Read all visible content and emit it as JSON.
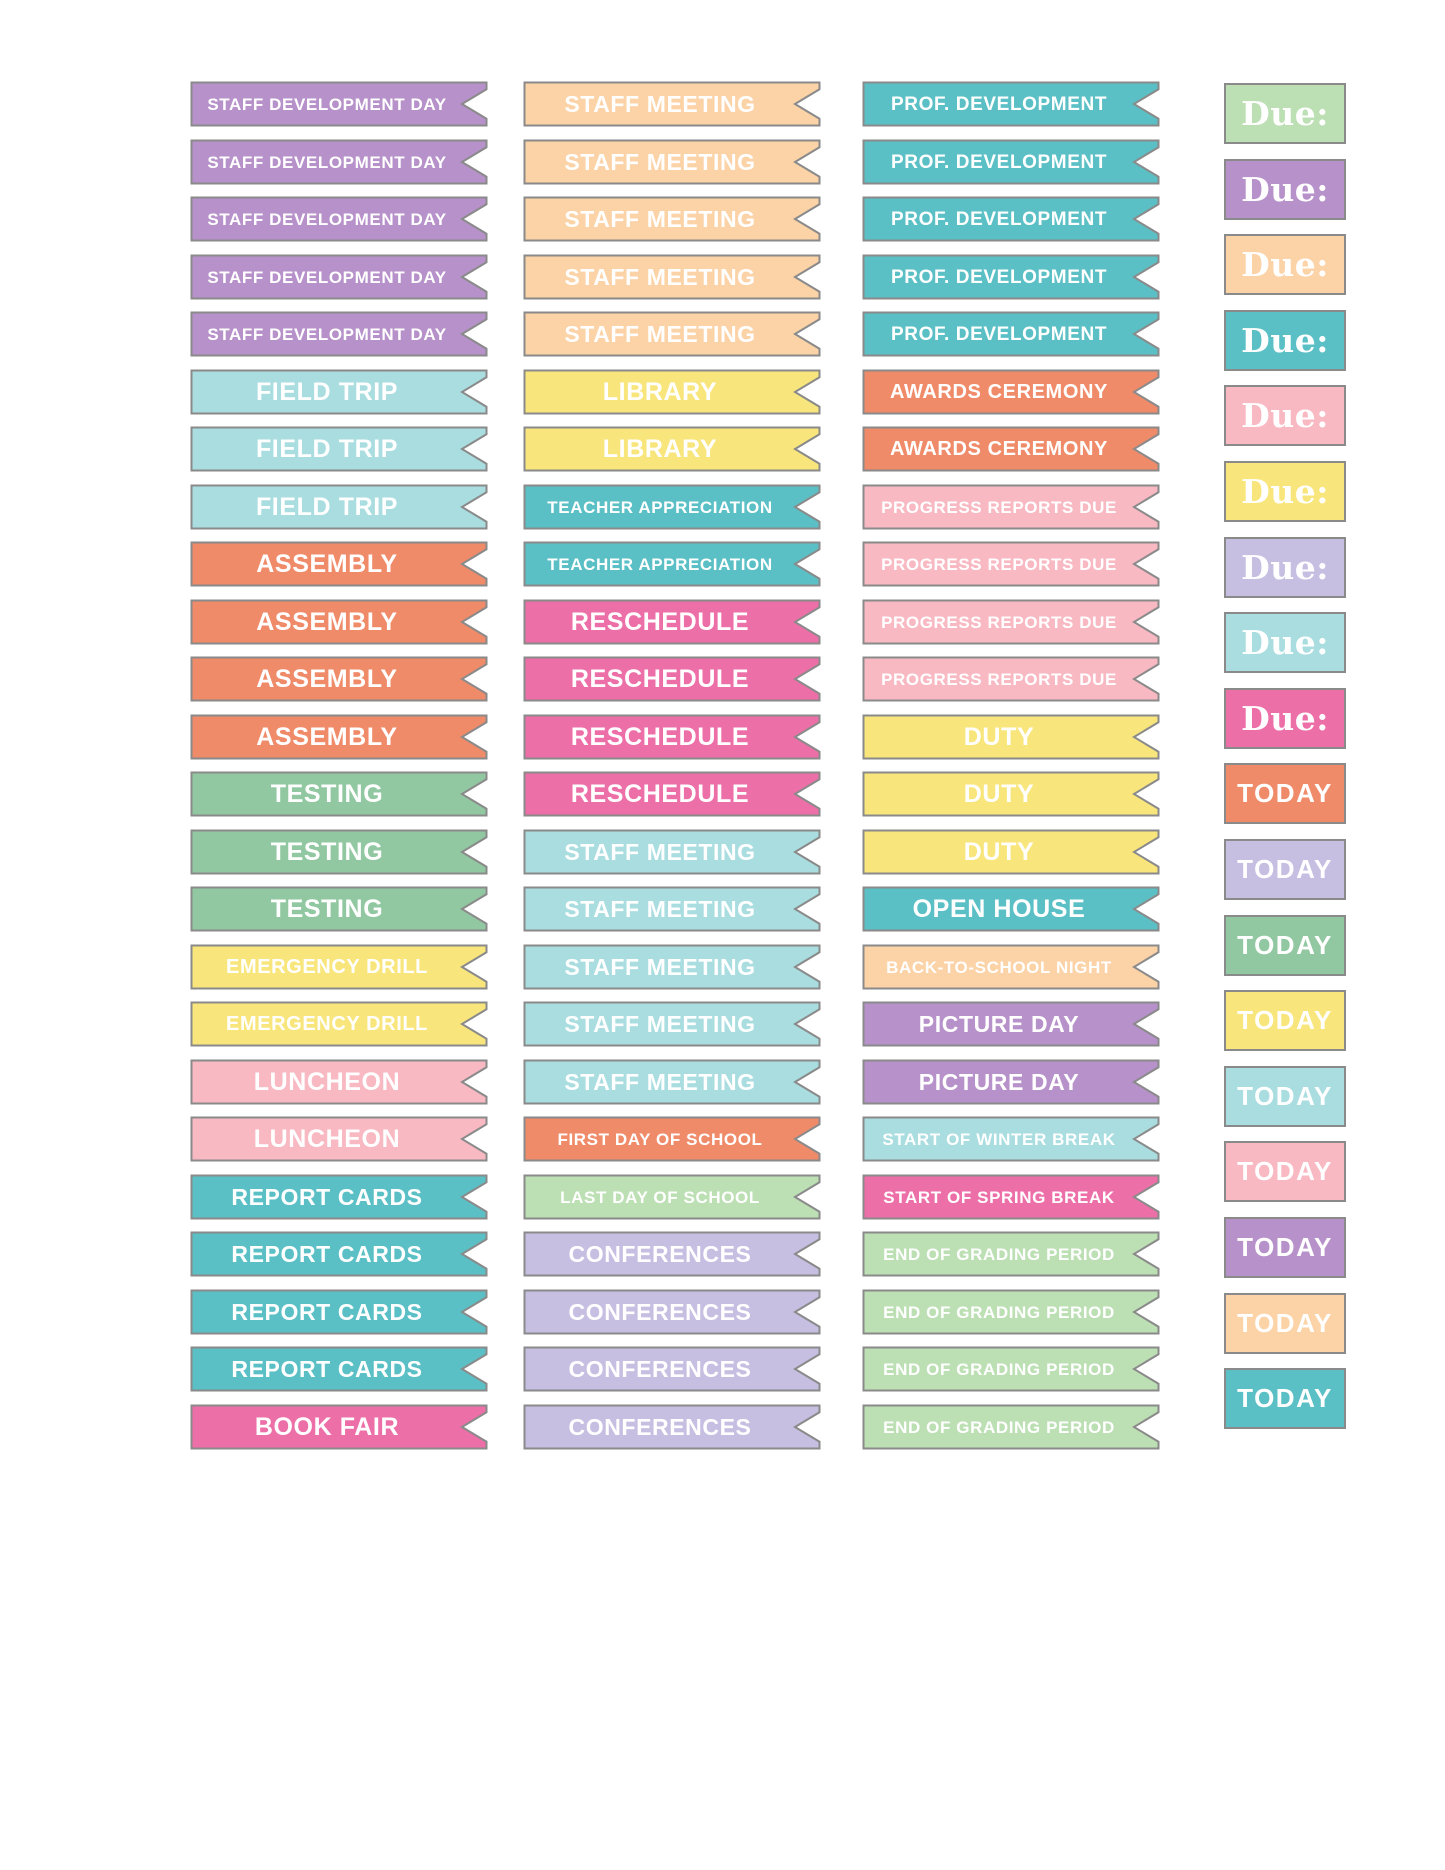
{
  "sheet_title": "School planner flag stickers sheet",
  "colors": {
    "purple": "#b791c9",
    "peach": "#fcd2a7",
    "teal": "#5bc0c5",
    "aqua": "#a9dde0",
    "coral": "#f08b6a",
    "green": "#92c8a1",
    "light_green": "#bce0b4",
    "yellow": "#f8e67d",
    "light_pink": "#f8b9c3",
    "magenta": "#ed6fa8",
    "lavender": "#c6bfe2",
    "border": "#8a8a8a",
    "text": "#ffffff",
    "page_bg": "#ffffff"
  },
  "flag_rows": [
    {
      "col1": {
        "label": "STAFF DEVELOPMENT DAY",
        "color": "purple"
      },
      "col2": {
        "label": "STAFF MEETING",
        "color": "peach"
      },
      "col3": {
        "label": "PROF. DEVELOPMENT",
        "color": "teal"
      }
    },
    {
      "col1": {
        "label": "STAFF DEVELOPMENT DAY",
        "color": "purple"
      },
      "col2": {
        "label": "STAFF MEETING",
        "color": "peach"
      },
      "col3": {
        "label": "PROF. DEVELOPMENT",
        "color": "teal"
      }
    },
    {
      "col1": {
        "label": "STAFF DEVELOPMENT DAY",
        "color": "purple"
      },
      "col2": {
        "label": "STAFF MEETING",
        "color": "peach"
      },
      "col3": {
        "label": "PROF. DEVELOPMENT",
        "color": "teal"
      }
    },
    {
      "col1": {
        "label": "STAFF DEVELOPMENT DAY",
        "color": "purple"
      },
      "col2": {
        "label": "STAFF MEETING",
        "color": "peach"
      },
      "col3": {
        "label": "PROF. DEVELOPMENT",
        "color": "teal"
      }
    },
    {
      "col1": {
        "label": "STAFF DEVELOPMENT DAY",
        "color": "purple"
      },
      "col2": {
        "label": "STAFF MEETING",
        "color": "peach"
      },
      "col3": {
        "label": "PROF. DEVELOPMENT",
        "color": "teal"
      }
    },
    {
      "col1": {
        "label": "FIELD TRIP",
        "color": "aqua"
      },
      "col2": {
        "label": "LIBRARY",
        "color": "yellow"
      },
      "col3": {
        "label": "AWARDS CEREMONY",
        "color": "coral"
      }
    },
    {
      "col1": {
        "label": "FIELD TRIP",
        "color": "aqua"
      },
      "col2": {
        "label": "LIBRARY",
        "color": "yellow"
      },
      "col3": {
        "label": "AWARDS CEREMONY",
        "color": "coral"
      }
    },
    {
      "col1": {
        "label": "FIELD TRIP",
        "color": "aqua"
      },
      "col2": {
        "label": "TEACHER APPRECIATION",
        "color": "teal"
      },
      "col3": {
        "label": "PROGRESS REPORTS DUE",
        "color": "light_pink"
      }
    },
    {
      "col1": {
        "label": "ASSEMBLY",
        "color": "coral"
      },
      "col2": {
        "label": "TEACHER APPRECIATION",
        "color": "teal"
      },
      "col3": {
        "label": "PROGRESS REPORTS DUE",
        "color": "light_pink"
      }
    },
    {
      "col1": {
        "label": "ASSEMBLY",
        "color": "coral"
      },
      "col2": {
        "label": "RESCHEDULE",
        "color": "magenta"
      },
      "col3": {
        "label": "PROGRESS REPORTS DUE",
        "color": "light_pink"
      }
    },
    {
      "col1": {
        "label": "ASSEMBLY",
        "color": "coral"
      },
      "col2": {
        "label": "RESCHEDULE",
        "color": "magenta"
      },
      "col3": {
        "label": "PROGRESS REPORTS DUE",
        "color": "light_pink"
      }
    },
    {
      "col1": {
        "label": "ASSEMBLY",
        "color": "coral"
      },
      "col2": {
        "label": "RESCHEDULE",
        "color": "magenta"
      },
      "col3": {
        "label": "DUTY",
        "color": "yellow"
      }
    },
    {
      "col1": {
        "label": "TESTING",
        "color": "green"
      },
      "col2": {
        "label": "RESCHEDULE",
        "color": "magenta"
      },
      "col3": {
        "label": "DUTY",
        "color": "yellow"
      }
    },
    {
      "col1": {
        "label": "TESTING",
        "color": "green"
      },
      "col2": {
        "label": "STAFF MEETING",
        "color": "aqua"
      },
      "col3": {
        "label": "DUTY",
        "color": "yellow"
      }
    },
    {
      "col1": {
        "label": "TESTING",
        "color": "green"
      },
      "col2": {
        "label": "STAFF MEETING",
        "color": "aqua"
      },
      "col3": {
        "label": "OPEN HOUSE",
        "color": "teal"
      }
    },
    {
      "col1": {
        "label": "EMERGENCY DRILL",
        "color": "yellow"
      },
      "col2": {
        "label": "STAFF MEETING",
        "color": "aqua"
      },
      "col3": {
        "label": "BACK-TO-SCHOOL NIGHT",
        "color": "peach"
      }
    },
    {
      "col1": {
        "label": "EMERGENCY DRILL",
        "color": "yellow"
      },
      "col2": {
        "label": "STAFF MEETING",
        "color": "aqua"
      },
      "col3": {
        "label": "PICTURE DAY",
        "color": "purple"
      }
    },
    {
      "col1": {
        "label": "LUNCHEON",
        "color": "light_pink"
      },
      "col2": {
        "label": "STAFF MEETING",
        "color": "aqua"
      },
      "col3": {
        "label": "PICTURE DAY",
        "color": "purple"
      }
    },
    {
      "col1": {
        "label": "LUNCHEON",
        "color": "light_pink"
      },
      "col2": {
        "label": "FIRST DAY OF SCHOOL",
        "color": "coral"
      },
      "col3": {
        "label": "START OF WINTER BREAK",
        "color": "aqua"
      }
    },
    {
      "col1": {
        "label": "REPORT CARDS",
        "color": "teal"
      },
      "col2": {
        "label": "LAST DAY OF SCHOOL",
        "color": "light_green"
      },
      "col3": {
        "label": "START OF SPRING BREAK",
        "color": "magenta"
      }
    },
    {
      "col1": {
        "label": "REPORT CARDS",
        "color": "teal"
      },
      "col2": {
        "label": "CONFERENCES",
        "color": "lavender"
      },
      "col3": {
        "label": "END OF GRADING PERIOD",
        "color": "light_green"
      }
    },
    {
      "col1": {
        "label": "REPORT CARDS",
        "color": "teal"
      },
      "col2": {
        "label": "CONFERENCES",
        "color": "lavender"
      },
      "col3": {
        "label": "END OF GRADING PERIOD",
        "color": "light_green"
      }
    },
    {
      "col1": {
        "label": "REPORT CARDS",
        "color": "teal"
      },
      "col2": {
        "label": "CONFERENCES",
        "color": "lavender"
      },
      "col3": {
        "label": "END OF GRADING PERIOD",
        "color": "light_green"
      }
    },
    {
      "col1": {
        "label": "BOOK FAIR",
        "color": "magenta"
      },
      "col2": {
        "label": "CONFERENCES",
        "color": "lavender"
      },
      "col3": {
        "label": "END OF GRADING PERIOD",
        "color": "light_green"
      }
    }
  ],
  "tab_stickers": [
    {
      "label": "Due:",
      "color": "light_green"
    },
    {
      "label": "Due:",
      "color": "purple"
    },
    {
      "label": "Due:",
      "color": "peach"
    },
    {
      "label": "Due:",
      "color": "teal"
    },
    {
      "label": "Due:",
      "color": "light_pink"
    },
    {
      "label": "Due:",
      "color": "yellow"
    },
    {
      "label": "Due:",
      "color": "lavender"
    },
    {
      "label": "Due:",
      "color": "aqua"
    },
    {
      "label": "Due:",
      "color": "magenta"
    },
    {
      "label": "TODAY",
      "color": "coral"
    },
    {
      "label": "TODAY",
      "color": "lavender"
    },
    {
      "label": "TODAY",
      "color": "green"
    },
    {
      "label": "TODAY",
      "color": "yellow"
    },
    {
      "label": "TODAY",
      "color": "aqua"
    },
    {
      "label": "TODAY",
      "color": "light_pink"
    },
    {
      "label": "TODAY",
      "color": "purple"
    },
    {
      "label": "TODAY",
      "color": "peach"
    },
    {
      "label": "TODAY",
      "color": "teal"
    }
  ],
  "layout_note": "24 flag rows in 3 columns, 18 square tabs in column 4"
}
